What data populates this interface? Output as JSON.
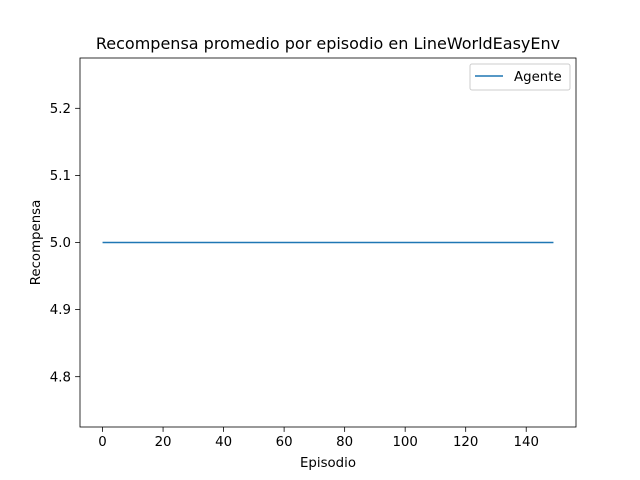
{
  "chart_data": {
    "type": "line",
    "title": "Recompensa promedio por episodio en LineWorldEasyEnv",
    "xlabel": "Episodio",
    "ylabel": "Recompensa",
    "xlim": [
      -7.45,
      156.45
    ],
    "ylim": [
      4.725,
      5.275
    ],
    "x_ticks": [
      0,
      20,
      40,
      60,
      80,
      100,
      120,
      140
    ],
    "y_ticks": [
      4.8,
      4.9,
      5.0,
      5.1,
      5.2
    ],
    "y_tick_labels": [
      "4.8",
      "4.9",
      "5.0",
      "5.1",
      "5.2"
    ],
    "grid": false,
    "legend_position": "top-right",
    "series": [
      {
        "name": "Agente",
        "color": "#1f77b4",
        "x": [
          0,
          149
        ],
        "y": [
          5.0,
          5.0
        ]
      }
    ]
  }
}
